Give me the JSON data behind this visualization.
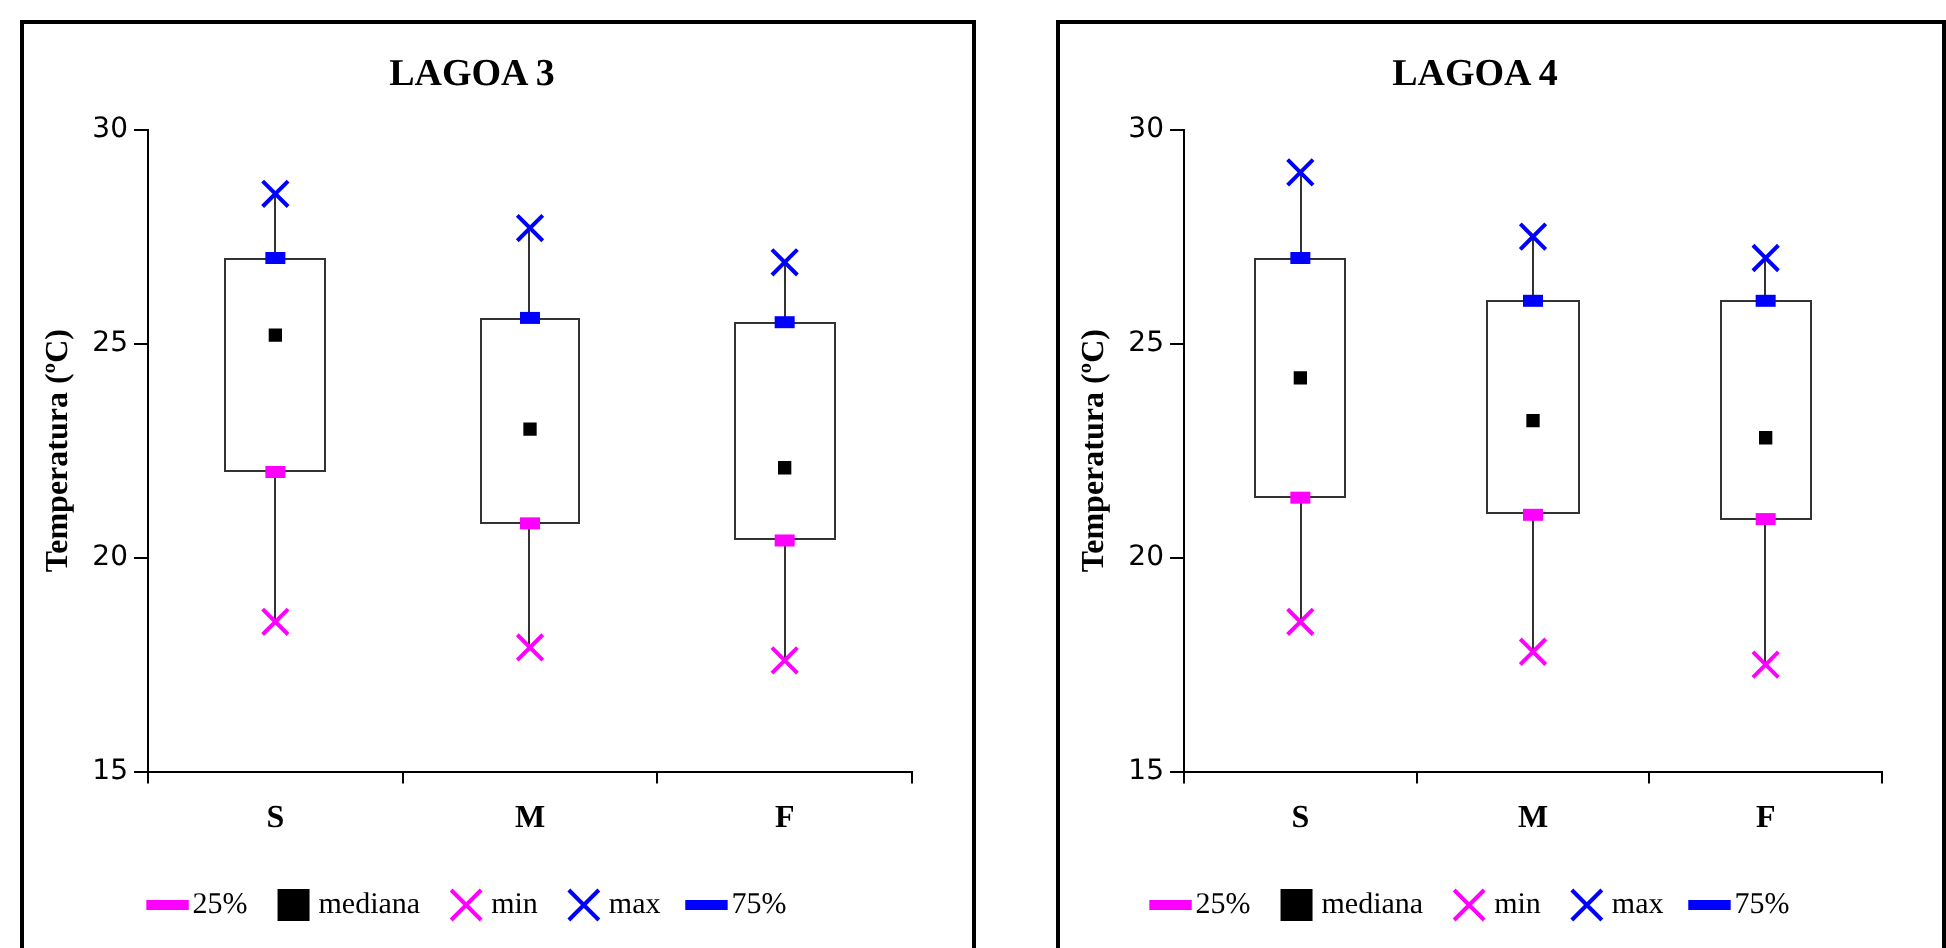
{
  "chart_data": [
    {
      "type": "scatter",
      "title": "LAGOA 3",
      "ylabel": "Temperatura (ºC)",
      "categories": [
        "S",
        "M",
        "F"
      ],
      "ylim": [
        15,
        30
      ],
      "yticks": [
        15,
        20,
        25,
        30
      ],
      "grid": false,
      "legend": "bottom",
      "series": [
        {
          "name": "25%",
          "color": "#ff00ff",
          "values": [
            22.0,
            20.8,
            20.4
          ]
        },
        {
          "name": "mediana",
          "color": "#000000",
          "marker": "square",
          "values": [
            25.2,
            23.0,
            22.1
          ]
        },
        {
          "name": "min",
          "color": "#ff00ff",
          "marker": "cross",
          "values": [
            18.5,
            17.9,
            17.6
          ]
        },
        {
          "name": "max",
          "color": "#0000ff",
          "marker": "cross",
          "values": [
            28.5,
            27.7,
            26.9
          ]
        },
        {
          "name": "75%",
          "color": "#0000ff",
          "values": [
            27.0,
            25.6,
            25.5
          ]
        }
      ]
    },
    {
      "type": "scatter",
      "title": "LAGOA 4",
      "ylabel": "Temperatura (ºC)",
      "categories": [
        "S",
        "M",
        "F"
      ],
      "ylim": [
        15,
        30
      ],
      "yticks": [
        15,
        20,
        25,
        30
      ],
      "grid": false,
      "legend": "bottom",
      "series": [
        {
          "name": "25%",
          "color": "#ff00ff",
          "values": [
            21.4,
            21.0,
            20.9
          ]
        },
        {
          "name": "mediana",
          "color": "#000000",
          "marker": "square",
          "values": [
            24.2,
            23.2,
            22.8
          ]
        },
        {
          "name": "min",
          "color": "#ff00ff",
          "marker": "cross",
          "values": [
            18.5,
            17.8,
            17.5
          ]
        },
        {
          "name": "max",
          "color": "#0000ff",
          "marker": "cross",
          "values": [
            29.0,
            27.5,
            27.0
          ]
        },
        {
          "name": "75%",
          "color": "#0000ff",
          "values": [
            27.0,
            26.0,
            26.0
          ]
        }
      ]
    }
  ]
}
